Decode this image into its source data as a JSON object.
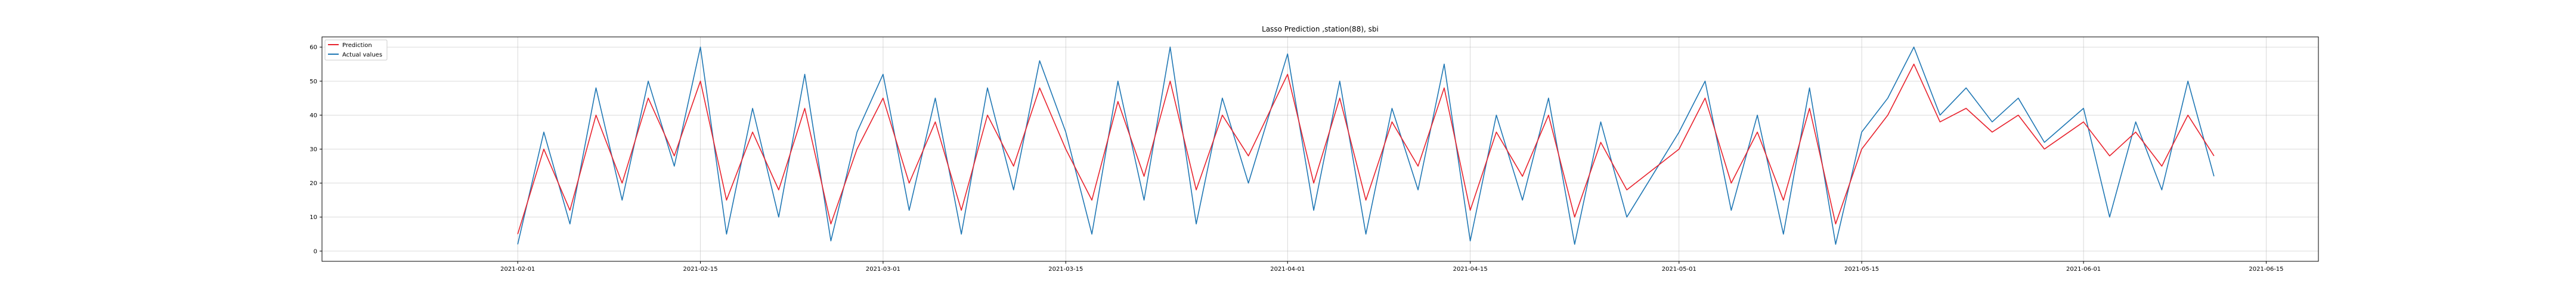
{
  "chart_data": {
    "type": "line",
    "title": "Lasso Prediction ,station(88), sbi",
    "xlabel": "",
    "ylabel": "",
    "xlim": [
      "2021-01-17",
      "2021-06-19"
    ],
    "ylim": [
      -3,
      63
    ],
    "x_ticks": [
      "2021-02-01",
      "2021-02-15",
      "2021-03-01",
      "2021-03-15",
      "2021-04-01",
      "2021-04-15",
      "2021-05-01",
      "2021-05-15",
      "2021-06-01",
      "2021-06-15"
    ],
    "y_ticks": [
      0,
      10,
      20,
      30,
      40,
      50,
      60
    ],
    "grid": true,
    "legend_position": "top-left",
    "series": [
      {
        "name": "Prediction",
        "color": "#e8222d",
        "x": [
          "2021-02-01",
          "2021-02-03",
          "2021-02-05",
          "2021-02-07",
          "2021-02-09",
          "2021-02-11",
          "2021-02-13",
          "2021-02-15",
          "2021-02-17",
          "2021-02-19",
          "2021-02-21",
          "2021-02-23",
          "2021-02-25",
          "2021-02-27",
          "2021-03-01",
          "2021-03-03",
          "2021-03-05",
          "2021-03-07",
          "2021-03-09",
          "2021-03-11",
          "2021-03-13",
          "2021-03-15",
          "2021-03-17",
          "2021-03-19",
          "2021-03-21",
          "2021-03-23",
          "2021-03-25",
          "2021-03-27",
          "2021-03-29",
          "2021-04-01",
          "2021-04-03",
          "2021-04-05",
          "2021-04-07",
          "2021-04-09",
          "2021-04-11",
          "2021-04-13",
          "2021-04-15",
          "2021-04-17",
          "2021-04-19",
          "2021-04-21",
          "2021-04-23",
          "2021-04-25",
          "2021-04-27",
          "2021-05-01",
          "2021-05-03",
          "2021-05-05",
          "2021-05-07",
          "2021-05-09",
          "2021-05-11",
          "2021-05-13",
          "2021-05-15",
          "2021-05-17",
          "2021-05-19",
          "2021-05-21",
          "2021-05-23",
          "2021-05-25",
          "2021-05-27",
          "2021-05-29",
          "2021-06-01",
          "2021-06-03",
          "2021-06-05",
          "2021-06-07",
          "2021-06-09",
          "2021-06-11"
        ],
        "y": [
          5,
          30,
          12,
          40,
          20,
          45,
          28,
          50,
          15,
          35,
          18,
          42,
          8,
          30,
          45,
          20,
          38,
          12,
          40,
          25,
          48,
          30,
          15,
          44,
          22,
          50,
          18,
          40,
          28,
          52,
          20,
          45,
          15,
          38,
          25,
          48,
          12,
          35,
          22,
          40,
          10,
          32,
          18,
          30,
          45,
          20,
          35,
          15,
          42,
          8,
          30,
          40,
          55,
          38,
          42,
          35,
          40,
          30,
          38,
          28,
          35,
          25,
          40,
          28
        ]
      },
      {
        "name": "Actual values",
        "color": "#1f77b4",
        "x": [
          "2021-02-01",
          "2021-02-03",
          "2021-02-05",
          "2021-02-07",
          "2021-02-09",
          "2021-02-11",
          "2021-02-13",
          "2021-02-15",
          "2021-02-17",
          "2021-02-19",
          "2021-02-21",
          "2021-02-23",
          "2021-02-25",
          "2021-02-27",
          "2021-03-01",
          "2021-03-03",
          "2021-03-05",
          "2021-03-07",
          "2021-03-09",
          "2021-03-11",
          "2021-03-13",
          "2021-03-15",
          "2021-03-17",
          "2021-03-19",
          "2021-03-21",
          "2021-03-23",
          "2021-03-25",
          "2021-03-27",
          "2021-03-29",
          "2021-04-01",
          "2021-04-03",
          "2021-04-05",
          "2021-04-07",
          "2021-04-09",
          "2021-04-11",
          "2021-04-13",
          "2021-04-15",
          "2021-04-17",
          "2021-04-19",
          "2021-04-21",
          "2021-04-23",
          "2021-04-25",
          "2021-04-27",
          "2021-05-01",
          "2021-05-03",
          "2021-05-05",
          "2021-05-07",
          "2021-05-09",
          "2021-05-11",
          "2021-05-13",
          "2021-05-15",
          "2021-05-17",
          "2021-05-19",
          "2021-05-21",
          "2021-05-23",
          "2021-05-25",
          "2021-05-27",
          "2021-05-29",
          "2021-06-01",
          "2021-06-03",
          "2021-06-05",
          "2021-06-07",
          "2021-06-09",
          "2021-06-11"
        ],
        "y": [
          2,
          35,
          8,
          48,
          15,
          50,
          25,
          60,
          5,
          42,
          10,
          52,
          3,
          35,
          52,
          12,
          45,
          5,
          48,
          18,
          56,
          35,
          5,
          50,
          15,
          60,
          8,
          45,
          20,
          58,
          12,
          50,
          5,
          42,
          18,
          55,
          3,
          40,
          15,
          45,
          2,
          38,
          10,
          35,
          50,
          12,
          40,
          5,
          48,
          2,
          35,
          45,
          60,
          40,
          48,
          38,
          45,
          32,
          42,
          10,
          38,
          18,
          50,
          22
        ]
      }
    ]
  }
}
